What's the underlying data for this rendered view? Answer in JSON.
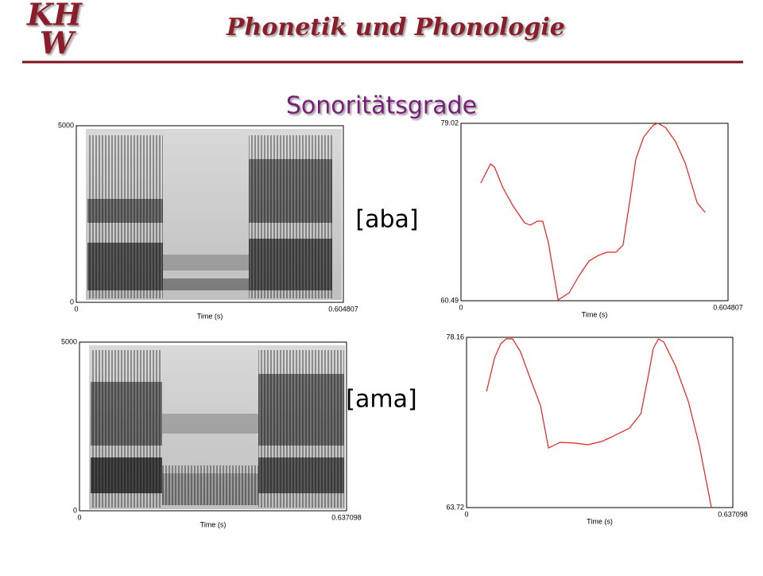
{
  "header": {
    "logo": [
      "KH",
      "W"
    ],
    "title": "Phonetik und Phonologie"
  },
  "slide_title": "Sonoritätsgrade",
  "rows": [
    {
      "label": "[aba]",
      "spectrogram": {
        "xlim": [
          0,
          0.604807
        ],
        "ylim": [
          0,
          5000
        ],
        "xlabel": "Time (s)"
      },
      "intensity": {
        "type": "line",
        "color": "#e8201c",
        "xlim": [
          0,
          0.604807
        ],
        "ylim": [
          60.49,
          79.02
        ],
        "xlabel": "Time (s)",
        "x": [
          0.045,
          0.067,
          0.076,
          0.095,
          0.117,
          0.144,
          0.157,
          0.173,
          0.185,
          0.198,
          0.22,
          0.245,
          0.268,
          0.29,
          0.311,
          0.331,
          0.351,
          0.367,
          0.383,
          0.396,
          0.414,
          0.436,
          0.446,
          0.463,
          0.486,
          0.508,
          0.535,
          0.553
        ],
        "values": [
          72.79,
          74.78,
          74.45,
          72.29,
          70.46,
          68.63,
          68.38,
          68.8,
          68.8,
          66.55,
          60.57,
          61.32,
          63.15,
          64.64,
          65.23,
          65.56,
          65.56,
          66.31,
          71.13,
          75.28,
          77.61,
          78.85,
          79.02,
          78.6,
          77.11,
          74.86,
          70.71,
          69.71
        ]
      }
    },
    {
      "label": "[ama]",
      "spectrogram": {
        "xlim": [
          0,
          0.637098
        ],
        "ylim": [
          0,
          5000
        ],
        "xlabel": "Time (s)"
      },
      "intensity": {
        "type": "line",
        "color": "#e8201c",
        "xlim": [
          0,
          0.637098
        ],
        "ylim": [
          63.72,
          78.16
        ],
        "xlabel": "Time (s)",
        "x": [
          0.048,
          0.067,
          0.082,
          0.095,
          0.11,
          0.129,
          0.152,
          0.177,
          0.196,
          0.224,
          0.257,
          0.291,
          0.323,
          0.348,
          0.39,
          0.417,
          0.434,
          0.447,
          0.459,
          0.472,
          0.5,
          0.531,
          0.557,
          0.586
        ],
        "values": [
          73.57,
          76.41,
          77.62,
          78.03,
          78.03,
          76.95,
          74.72,
          72.36,
          68.78,
          69.25,
          69.19,
          69.05,
          69.32,
          69.72,
          70.47,
          71.68,
          74.72,
          77.22,
          78.03,
          77.76,
          75.73,
          72.69,
          68.98,
          63.72
        ]
      }
    }
  ]
}
